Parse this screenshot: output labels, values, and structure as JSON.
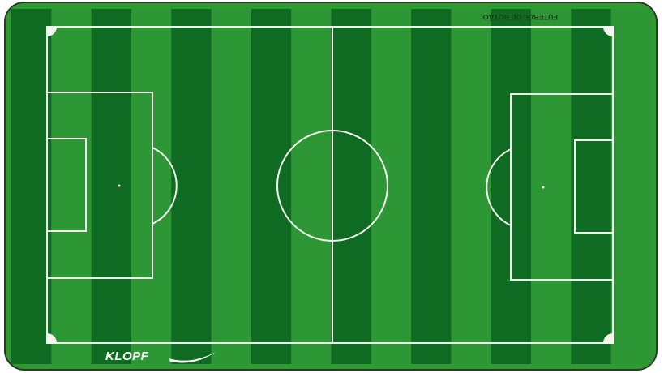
{
  "board": {
    "top_text": "FUTEBOL DE BOTÃO",
    "brand": "KLOPF",
    "stripe_count": 16,
    "colors": {
      "frame": "#2f9a31",
      "stripe_dark": "#0f6a22",
      "stripe_light": "#2e9735",
      "lines": "#f4f6ee",
      "outer_border": "#2b3a26"
    }
  }
}
